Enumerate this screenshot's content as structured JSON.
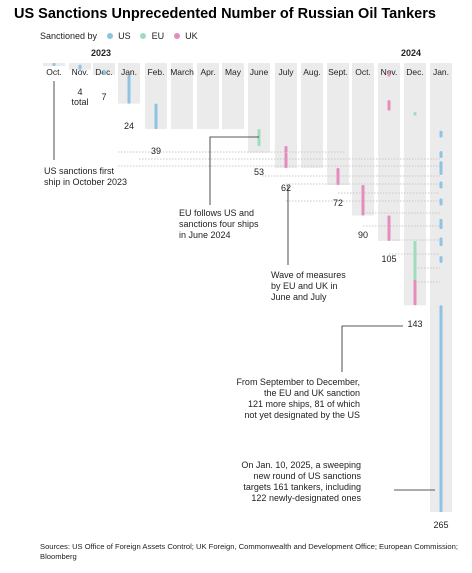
{
  "chart_data": {
    "type": "bar",
    "title": "US Sanctions Unprecedented Number of Russian Oil Tankers",
    "legend": {
      "label": "Sanctioned by",
      "entries": [
        {
          "name": "US",
          "color": "#8ec3e3"
        },
        {
          "name": "EU",
          "color": "#9fdcbb"
        },
        {
          "name": "UK",
          "color": "#e58cbd"
        }
      ]
    },
    "years": [
      "2023",
      "2024"
    ],
    "categories": [
      "Oct.",
      "Nov.",
      "Dec.",
      "Jan.",
      "Feb.",
      "March",
      "Apr.",
      "May",
      "June",
      "July",
      "Aug.",
      "Sept.",
      "Oct.",
      "Nov.",
      "Dec.",
      "Jan."
    ],
    "cumulative_totals": [
      {
        "month": "Oct.",
        "value": 1
      },
      {
        "month": "Nov.",
        "value": 4,
        "label": "4\ntotal"
      },
      {
        "month": "Dec.",
        "value": 7,
        "label": "7"
      },
      {
        "month": "Jan.",
        "value": 24,
        "label": "24"
      },
      {
        "month": "Feb.",
        "value": 39,
        "label": "39"
      },
      {
        "month": "June",
        "value": 53,
        "label": "53"
      },
      {
        "month": "July",
        "value": 62,
        "label": "62"
      },
      {
        "month": "Sept.",
        "value": 72,
        "label": "72"
      },
      {
        "month": "Oct.",
        "value": 90,
        "label": "90"
      },
      {
        "month": "Nov.",
        "value": 105,
        "label": "105"
      },
      {
        "month": "Dec.",
        "value": 143,
        "label": "143"
      },
      {
        "month": "Jan.",
        "value": 265,
        "label": "265"
      }
    ],
    "ylim": [
      0,
      265
    ],
    "annotations": [
      {
        "id": "first",
        "text": "US sanctions first\nship in October 2023"
      },
      {
        "id": "eu",
        "text": "EU follows US and\nsanctions four ships\nin June 2024"
      },
      {
        "id": "wave",
        "text": "Wave of measures\nby EU and UK in\nJune and July"
      },
      {
        "id": "sept",
        "text": "From September to December,\nthe EU and UK sanction\n121 more ships, 81 of which\nnot yet designated by the US"
      },
      {
        "id": "jan",
        "text": "On Jan. 10, 2025, a sweeping\nnew round of US sanctions\ntargets 161 tankers, including\n122 newly-designated ones"
      }
    ]
  },
  "source": "Sources: US Office of Foreign Assets Control; UK Foreign, Commonwealth and Development Office; European Commission; Bloomberg"
}
